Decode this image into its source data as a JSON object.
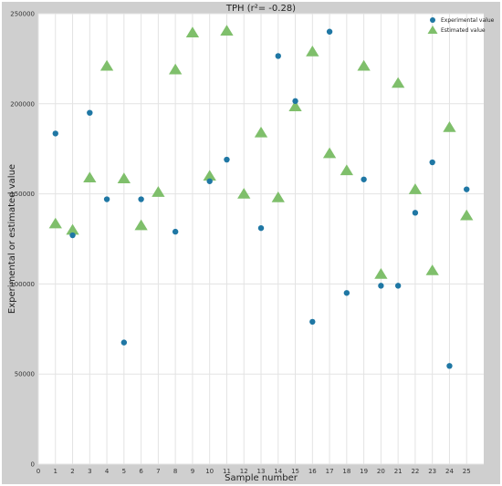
{
  "chart_data": {
    "type": "scatter",
    "title": "TPH (r²= -0.28)",
    "xlabel": "Sample number",
    "ylabel": "Experimental or estimated value",
    "xlim": [
      0,
      26
    ],
    "ylim": [
      0,
      250000
    ],
    "x_ticks": [
      0,
      1,
      2,
      3,
      4,
      5,
      6,
      7,
      8,
      9,
      10,
      11,
      12,
      13,
      14,
      15,
      16,
      17,
      18,
      19,
      20,
      21,
      22,
      23,
      24,
      25
    ],
    "y_ticks": [
      0,
      50000,
      100000,
      150000,
      200000,
      250000
    ],
    "grid": true,
    "legend_position": "top-right",
    "x": [
      1,
      2,
      3,
      4,
      5,
      6,
      7,
      8,
      9,
      10,
      11,
      12,
      13,
      14,
      15,
      16,
      17,
      18,
      19,
      20,
      21,
      22,
      23,
      24,
      25
    ],
    "series": [
      {
        "name": "Experimental value",
        "marker": "circle",
        "color": "#1f77a4",
        "values": [
          183500,
          127000,
          195000,
          147000,
          67500,
          147000,
          null,
          129000,
          null,
          157000,
          169000,
          null,
          131000,
          226500,
          201500,
          79000,
          240000,
          95000,
          158000,
          99000,
          99000,
          139500,
          167500,
          54500,
          152500
        ]
      },
      {
        "name": "Estimated value",
        "marker": "triangle",
        "color": "#7fbf6b",
        "values": [
          133500,
          130000,
          159000,
          221000,
          158500,
          132500,
          151000,
          219000,
          239500,
          160000,
          240500,
          150000,
          184000,
          148000,
          198500,
          229000,
          172500,
          163000,
          221000,
          105500,
          211500,
          152500,
          107500,
          187000,
          138000
        ]
      }
    ]
  }
}
